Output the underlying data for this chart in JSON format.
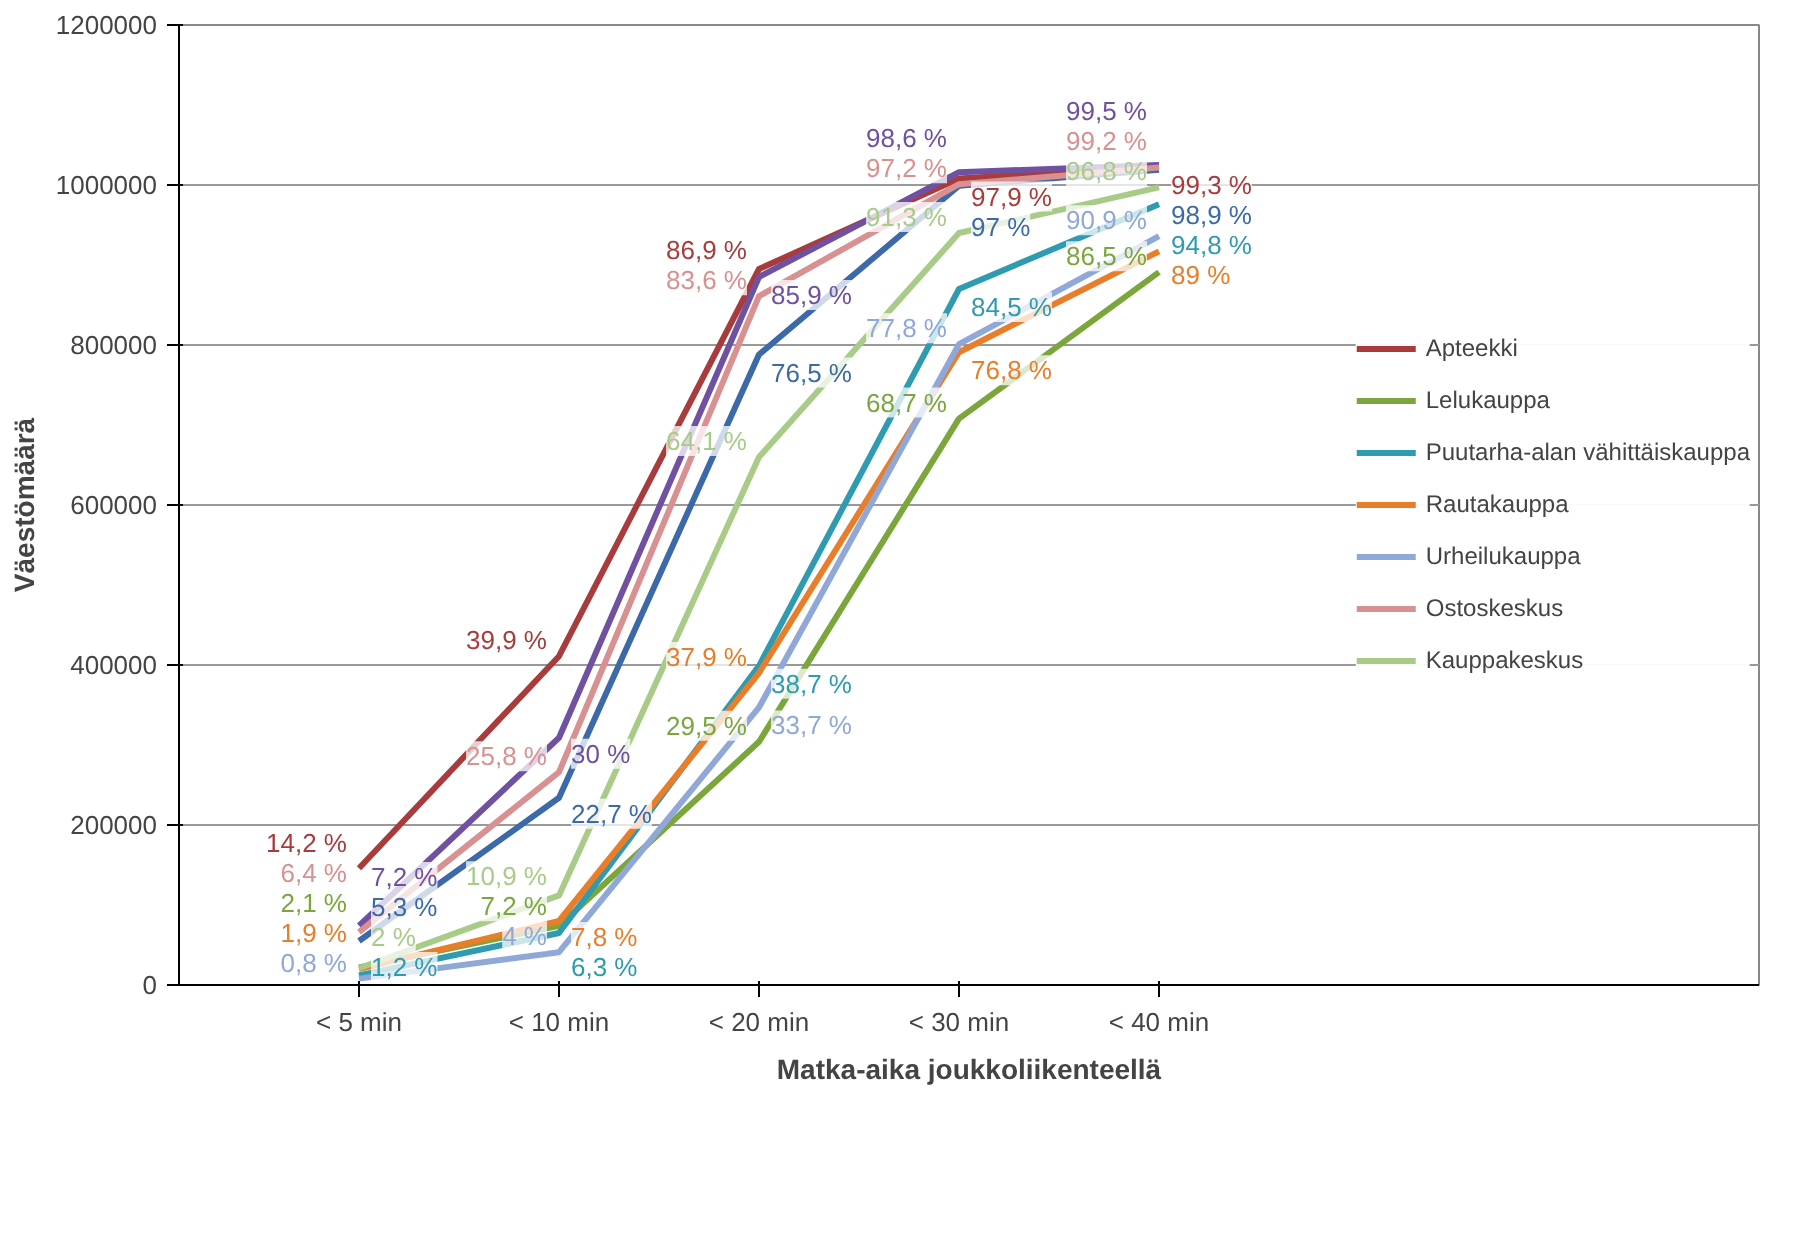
{
  "chart_data": {
    "type": "line",
    "xlabel": "Matka-aika joukkoliikenteellä",
    "ylabel": "Väestömäärä",
    "categories": [
      "< 5 min",
      "< 10 min",
      "< 20 min",
      "< 30 min",
      "< 40 min"
    ],
    "ylim": [
      0,
      1200000
    ],
    "yticks": [
      0,
      200000,
      400000,
      600000,
      800000,
      1000000,
      1200000
    ],
    "grid": "y",
    "legend": "right",
    "marker": "none",
    "line_style": "solid",
    "series": [
      {
        "color": "#3c6aa8",
        "values": [
          55000,
          234000,
          788000,
          999000,
          1019000
        ]
      },
      {
        "name": "Apteekki",
        "color": "#a83c3c",
        "values": [
          146000,
          411000,
          895000,
          1008000,
          1023000
        ]
      },
      {
        "name": "Lelukauppa",
        "color": "#7aa63c",
        "values": [
          22000,
          74000,
          304000,
          708000,
          891000
        ]
      },
      {
        "color": "#7050a0",
        "values": [
          74000,
          309000,
          885000,
          1016000,
          1025000
        ]
      },
      {
        "name": "Puutarha-alan vähittäiskauppa",
        "color": "#2e9bb0",
        "values": [
          12000,
          65000,
          399000,
          870000,
          976000
        ]
      },
      {
        "name": "Rautakauppa",
        "color": "#e87d2a",
        "values": [
          20000,
          80000,
          390000,
          791000,
          917000
        ]
      },
      {
        "name": "Urheilukauppa",
        "color": "#8fa8d8",
        "values": [
          8000,
          41000,
          347000,
          801000,
          936000
        ]
      },
      {
        "name": "Ostoskeskus",
        "color": "#d99090",
        "values": [
          66000,
          266000,
          861000,
          1001000,
          1022000
        ]
      },
      {
        "name": "Kauppakeskus",
        "color": "#a8cc88",
        "values": [
          21000,
          112000,
          660000,
          940000,
          997000
        ]
      }
    ],
    "annotations": [
      {
        "text": "5,3 %",
        "x": "< 5 min",
        "y": 55000
      },
      {
        "text": "22,7 %",
        "x": "< 10 min",
        "y": 234000
      },
      {
        "text": "76,5 %",
        "x": "< 20 min",
        "y": 788000
      },
      {
        "text": "97 %",
        "x": "< 30 min",
        "y": 999000
      },
      {
        "text": "98,9 %",
        "x": "< 40 min",
        "y": 1019000
      },
      {
        "text": "14,2 %",
        "x": "< 5 min",
        "y": 146000
      },
      {
        "text": "39,9 %",
        "x": "< 10 min",
        "y": 411000
      },
      {
        "text": "86,9 %",
        "x": "< 20 min",
        "y": 895000
      },
      {
        "text": "97,9 %",
        "x": "< 30 min",
        "y": 1008000
      },
      {
        "text": "99,3 %",
        "x": "< 40 min",
        "y": 1023000
      },
      {
        "text": "2,1 %",
        "x": "< 5 min",
        "y": 22000
      },
      {
        "text": "7,2 %",
        "x": "< 10 min",
        "y": 74000
      },
      {
        "text": "29,5 %",
        "x": "< 20 min",
        "y": 304000
      },
      {
        "text": "68,7 %",
        "x": "< 30 min",
        "y": 708000
      },
      {
        "text": "86,5 %",
        "x": "< 40 min",
        "y": 891000
      },
      {
        "text": "7,2 %",
        "x": "< 5 min",
        "y": 74000
      },
      {
        "text": "30 %",
        "x": "< 10 min",
        "y": 309000
      },
      {
        "text": "85,9 %",
        "x": "< 20 min",
        "y": 885000
      },
      {
        "text": "98,6 %",
        "x": "< 30 min",
        "y": 1016000
      },
      {
        "text": "99,5 %",
        "x": "< 40 min",
        "y": 1025000
      },
      {
        "text": "1,2 %",
        "x": "< 5 min",
        "y": 12000
      },
      {
        "text": "6,3 %",
        "x": "< 10 min",
        "y": 65000
      },
      {
        "text": "38,7 %",
        "x": "< 20 min",
        "y": 399000
      },
      {
        "text": "84,5 %",
        "x": "< 30 min",
        "y": 870000
      },
      {
        "text": "94,8 %",
        "x": "< 40 min",
        "y": 976000
      },
      {
        "text": "1,9 %",
        "x": "< 5 min",
        "y": 20000
      },
      {
        "text": "7,8 %",
        "x": "< 10 min",
        "y": 80000
      },
      {
        "text": "37,9 %",
        "x": "< 20 min",
        "y": 390000
      },
      {
        "text": "76,8 %",
        "x": "< 30 min",
        "y": 791000
      },
      {
        "text": "89 %",
        "x": "< 40 min",
        "y": 917000
      },
      {
        "text": "0,8 %",
        "x": "< 5 min",
        "y": 8000
      },
      {
        "text": "4 %",
        "x": "< 10 min",
        "y": 41000
      },
      {
        "text": "33,7 %",
        "x": "< 20 min",
        "y": 347000
      },
      {
        "text": "77,8 %",
        "x": "< 30 min",
        "y": 801000
      },
      {
        "text": "90,9 %",
        "x": "< 40 min",
        "y": 936000
      },
      {
        "text": "6,4 %",
        "x": "< 5 min",
        "y": 66000
      },
      {
        "text": "25,8 %",
        "x": "< 10 min",
        "y": 266000
      },
      {
        "text": "83,6 %",
        "x": "< 20 min",
        "y": 861000
      },
      {
        "text": "97,2 %",
        "x": "< 30 min",
        "y": 1001000
      },
      {
        "text": "99,2 %",
        "x": "< 40 min",
        "y": 1022000
      },
      {
        "text": "2 %",
        "x": "< 5 min",
        "y": 21000
      },
      {
        "text": "10,9 %",
        "x": "< 10 min",
        "y": 112000
      },
      {
        "text": "64,1 %",
        "x": "< 20 min",
        "y": 660000
      },
      {
        "text": "91,3 %",
        "x": "< 30 min",
        "y": 940000
      },
      {
        "text": "96,8 %",
        "x": "< 40 min",
        "y": 997000
      }
    ]
  }
}
